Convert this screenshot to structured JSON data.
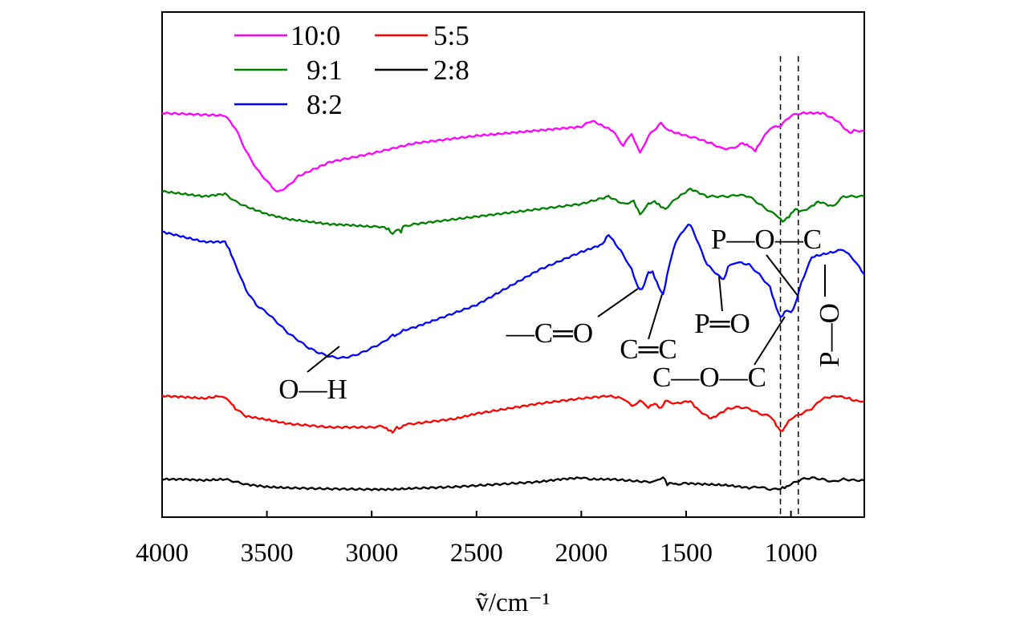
{
  "chart_data": {
    "type": "line",
    "title": "",
    "xlabel": "ṽ/cm⁻¹",
    "ylabel": "",
    "xlim": [
      4000,
      650
    ],
    "x_reversed": true,
    "x_ticks": [
      4000,
      3500,
      3000,
      2500,
      2000,
      1500,
      1000
    ],
    "x_tick_labels": [
      "4000",
      "3500",
      "3000",
      "2500",
      "2000",
      "1500",
      "1000"
    ],
    "ylim": [
      0,
      100
    ],
    "y_axis_visible": false,
    "grid": false,
    "legend": {
      "placement": "top-left",
      "columns": 2,
      "entries": [
        "10:0",
        "9:1",
        "8:2",
        "5:5",
        "2:8"
      ]
    },
    "series": [
      {
        "name": "10:0",
        "color": "#ff00ff",
        "x": [
          4000,
          3700,
          3650,
          3600,
          3550,
          3500,
          3450,
          3400,
          3350,
          3200,
          3000,
          2800,
          2500,
          2000,
          1950,
          1850,
          1800,
          1760,
          1720,
          1680,
          1620,
          1580,
          1500,
          1450,
          1380,
          1330,
          1280,
          1230,
          1200,
          1170,
          1150,
          1100,
          1050,
          1000,
          950,
          850,
          780,
          720,
          700,
          650
        ],
        "y": [
          80.0,
          79.5,
          77.0,
          72.5,
          69.0,
          66.5,
          64.3,
          65.5,
          67.5,
          70.3,
          72.0,
          74.0,
          75.5,
          77.3,
          78.5,
          76.5,
          73.5,
          76.0,
          72.0,
          75.5,
          78.0,
          76.5,
          75.5,
          75.0,
          74.0,
          73.0,
          73.0,
          74.0,
          73.5,
          72.5,
          74.0,
          77.0,
          77.5,
          79.5,
          80.0,
          80.0,
          78.5,
          76.0,
          76.5,
          76.5
        ]
      },
      {
        "name": "9:1",
        "color": "#008000",
        "x": [
          4000,
          3900,
          3800,
          3700,
          3650,
          3600,
          3500,
          3400,
          3300,
          3200,
          3100,
          3000,
          2950,
          2920,
          2900,
          2880,
          2860,
          2850,
          2800,
          2500,
          2200,
          2000,
          1870,
          1800,
          1750,
          1720,
          1680,
          1650,
          1620,
          1600,
          1550,
          1480,
          1400,
          1350,
          1300,
          1250,
          1200,
          1150,
          1100,
          1060,
          1040,
          1010,
          980,
          950,
          900,
          870,
          800,
          750,
          700,
          650
        ],
        "y": [
          64.5,
          64.0,
          63.5,
          64.0,
          62.5,
          61.5,
          60.0,
          59.0,
          58.5,
          58.0,
          57.8,
          57.5,
          57.5,
          57.0,
          56.0,
          57.0,
          56.5,
          57.5,
          58.0,
          59.5,
          61.0,
          62.0,
          63.5,
          62.0,
          62.5,
          60.0,
          62.0,
          62.5,
          61.5,
          61.0,
          63.0,
          65.0,
          63.5,
          63.5,
          63.5,
          63.8,
          63.5,
          62.0,
          60.5,
          59.5,
          58.5,
          59.5,
          61.0,
          60.5,
          61.5,
          62.5,
          61.5,
          63.5,
          63.5,
          63.5
        ]
      },
      {
        "name": "8:2",
        "color": "#0000ff",
        "x": [
          4000,
          3900,
          3800,
          3700,
          3680,
          3650,
          3600,
          3550,
          3500,
          3450,
          3400,
          3350,
          3300,
          3250,
          3200,
          3150,
          3100,
          3050,
          3000,
          2950,
          2900,
          2880,
          2850,
          2800,
          2700,
          2500,
          2200,
          2000,
          1900,
          1870,
          1800,
          1760,
          1730,
          1710,
          1680,
          1660,
          1630,
          1610,
          1580,
          1550,
          1500,
          1480,
          1450,
          1400,
          1350,
          1320,
          1300,
          1260,
          1200,
          1150,
          1100,
          1070,
          1050,
          1020,
          1000,
          980,
          950,
          900,
          800,
          750,
          700,
          650
        ],
        "y": [
          56.5,
          55.5,
          54.5,
          54.5,
          53.0,
          50.0,
          45.0,
          42.0,
          40.5,
          38.5,
          36.5,
          35.0,
          33.5,
          32.5,
          31.8,
          31.5,
          31.8,
          32.5,
          33.5,
          34.5,
          36.0,
          36.0,
          37.0,
          37.5,
          39.0,
          42.0,
          49.0,
          52.5,
          54.0,
          56.0,
          52.0,
          49.0,
          45.5,
          45.0,
          48.5,
          48.5,
          45.5,
          44.0,
          50.0,
          54.5,
          57.5,
          58.0,
          55.0,
          50.0,
          48.0,
          47.0,
          49.5,
          50.5,
          50.0,
          48.0,
          45.5,
          41.5,
          39.5,
          41.0,
          40.5,
          42.0,
          46.5,
          51.5,
          52.5,
          53.0,
          51.0,
          48.0
        ]
      },
      {
        "name": "5:5",
        "color": "#ff0000",
        "x": [
          4000,
          3900,
          3800,
          3720,
          3680,
          3650,
          3600,
          3500,
          3400,
          3200,
          3000,
          2950,
          2920,
          2900,
          2880,
          2860,
          2850,
          2800,
          2600,
          2500,
          2200,
          2000,
          1870,
          1800,
          1760,
          1720,
          1680,
          1650,
          1620,
          1600,
          1550,
          1480,
          1450,
          1400,
          1380,
          1300,
          1250,
          1200,
          1150,
          1100,
          1080,
          1060,
          1040,
          1020,
          1000,
          950,
          900,
          850,
          780,
          720,
          700,
          650
        ],
        "y": [
          24.0,
          23.8,
          23.5,
          24.0,
          23.0,
          21.5,
          20.0,
          19.3,
          18.5,
          17.8,
          17.8,
          18.0,
          17.3,
          16.8,
          17.8,
          17.5,
          18.3,
          18.5,
          19.5,
          20.5,
          22.5,
          23.5,
          24.0,
          23.5,
          22.0,
          23.0,
          21.8,
          22.5,
          21.5,
          23.0,
          22.5,
          23.0,
          21.5,
          20.0,
          19.5,
          21.5,
          21.8,
          21.5,
          20.5,
          20.0,
          19.0,
          17.5,
          17.0,
          18.5,
          19.5,
          20.5,
          21.5,
          23.5,
          24.0,
          23.5,
          23.0,
          23.0
        ]
      },
      {
        "name": "2:8",
        "color": "#000000",
        "x": [
          4000,
          3900,
          3800,
          3700,
          3650,
          3600,
          3500,
          3400,
          3200,
          3000,
          2900,
          2800,
          2600,
          2400,
          2200,
          2100,
          2000,
          1950,
          1850,
          1700,
          1650,
          1610,
          1590,
          1570,
          1550,
          1500,
          1400,
          1300,
          1200,
          1150,
          1100,
          1060,
          1040,
          1020,
          1000,
          950,
          900,
          850,
          800,
          750,
          700,
          650
        ],
        "y": [
          7.5,
          7.5,
          7.3,
          7.5,
          7.0,
          6.5,
          6.0,
          5.8,
          5.6,
          5.5,
          5.5,
          5.7,
          6.0,
          6.5,
          7.0,
          7.5,
          7.8,
          7.5,
          7.5,
          7.0,
          7.0,
          8.0,
          6.5,
          6.8,
          6.5,
          6.7,
          6.5,
          6.3,
          5.8,
          6.0,
          5.5,
          5.5,
          5.8,
          6.0,
          6.5,
          7.5,
          7.8,
          7.5,
          7.0,
          7.5,
          7.3,
          7.3
        ]
      }
    ],
    "reference_lines": [
      {
        "x": 1050,
        "style": "dashed"
      },
      {
        "x": 965,
        "style": "dashed"
      }
    ],
    "annotations": [
      {
        "text": "O—H",
        "points_to_series": "8:2",
        "points_to_x": 3150
      },
      {
        "text": "—C═O",
        "points_to_series": "8:2",
        "points_to_x": 1730
      },
      {
        "text": "C═C",
        "points_to_series": "8:2",
        "points_to_x": 1610
      },
      {
        "text": "P═O",
        "points_to_series": "8:2",
        "points_to_x": 1330
      },
      {
        "text": "C—O—C",
        "points_to_series": "8:2",
        "points_to_x": 1050
      },
      {
        "text": "P—O—C",
        "points_to_series": "8:2",
        "points_to_x": 980
      },
      {
        "text": "P—O",
        "points_to_series": "8:2",
        "points_to_x": 920
      }
    ]
  }
}
